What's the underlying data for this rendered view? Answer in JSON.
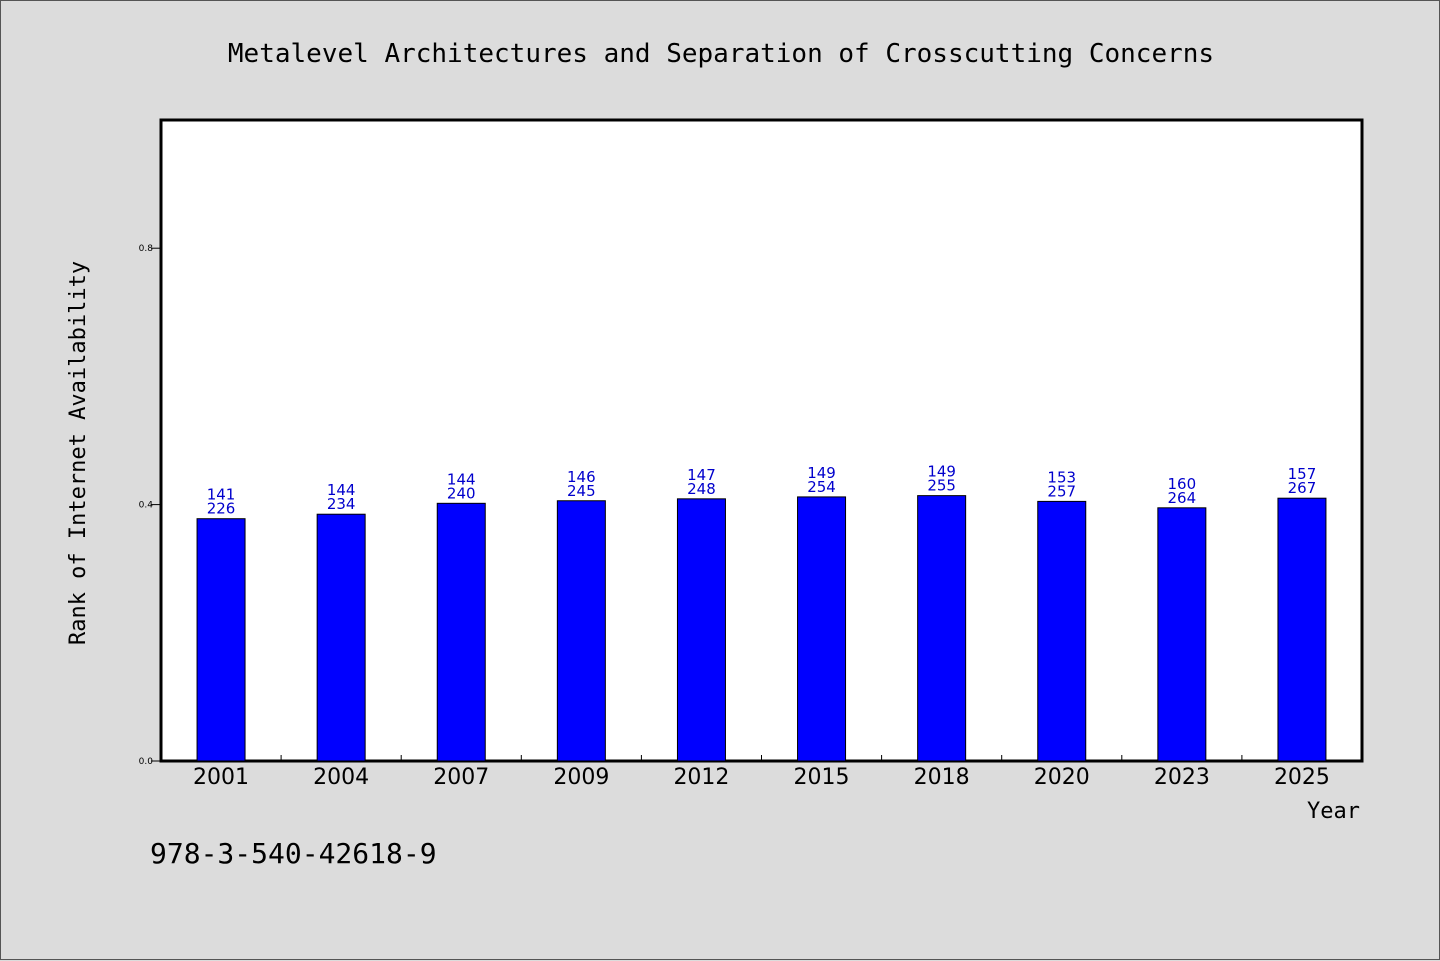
{
  "chart_data": {
    "type": "bar",
    "title": "Metalevel Architectures and Separation of Crosscutting Concerns",
    "xlabel": "Year",
    "ylabel": "Rank of Internet Availability",
    "categories": [
      "2001",
      "2004",
      "2007",
      "2009",
      "2012",
      "2015",
      "2018",
      "2020",
      "2023",
      "2025"
    ],
    "values": [
      0.378,
      0.385,
      0.402,
      0.406,
      0.409,
      0.412,
      0.414,
      0.405,
      0.395,
      0.41
    ],
    "labels_top": [
      "141",
      "144",
      "144",
      "146",
      "147",
      "149",
      "149",
      "153",
      "160",
      "157"
    ],
    "labels_bottom": [
      "226",
      "234",
      "240",
      "245",
      "248",
      "254",
      "255",
      "257",
      "264",
      "267"
    ],
    "ylim": [
      0,
      1
    ],
    "yticks": [
      "0.0",
      "0.4",
      "0.8"
    ],
    "yticks_values": [
      0,
      0.4,
      0.8
    ],
    "bar_color": "#0000ff",
    "label_color": "#0000cc",
    "grid": false
  },
  "footnote": "978-3-540-42618-9"
}
